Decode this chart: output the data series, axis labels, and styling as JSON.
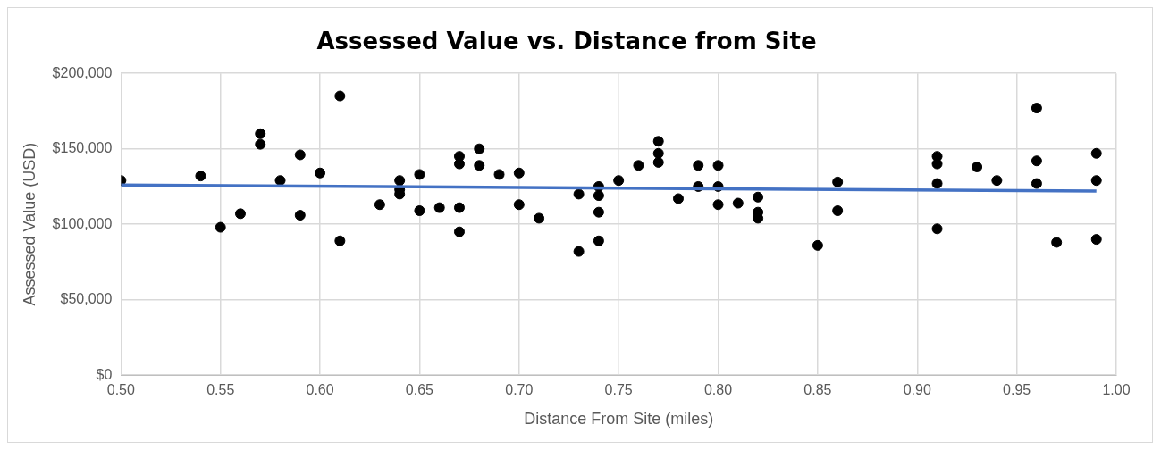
{
  "chart_data": {
    "type": "scatter",
    "title": "Assessed Value vs. Distance from Site",
    "xlabel": "Distance From Site (miles)",
    "ylabel": "Assessed Value (USD)",
    "series": [
      {
        "color": "#000000",
        "x": [
          0.5,
          0.54,
          0.55,
          0.56,
          0.57,
          0.57,
          0.58,
          0.59,
          0.59,
          0.6,
          0.61,
          0.61,
          0.63,
          0.64,
          0.64,
          0.64,
          0.65,
          0.65,
          0.66,
          0.67,
          0.67,
          0.67,
          0.67,
          0.68,
          0.68,
          0.69,
          0.7,
          0.7,
          0.71,
          0.73,
          0.73,
          0.74,
          0.74,
          0.74,
          0.74,
          0.75,
          0.76,
          0.77,
          0.77,
          0.77,
          0.78,
          0.79,
          0.79,
          0.8,
          0.8,
          0.8,
          0.81,
          0.82,
          0.82,
          0.82,
          0.85,
          0.86,
          0.86,
          0.91,
          0.91,
          0.91,
          0.91,
          0.93,
          0.94,
          0.96,
          0.96,
          0.96,
          0.97,
          0.99,
          0.99,
          0.99
        ],
        "values": [
          129000,
          132000,
          98000,
          107000,
          160000,
          153000,
          129000,
          146000,
          106000,
          134000,
          185000,
          89000,
          113000,
          129000,
          123000,
          120000,
          133000,
          109000,
          111000,
          145000,
          140000,
          111000,
          95000,
          150000,
          139000,
          133000,
          134000,
          113000,
          104000,
          120000,
          82000,
          125000,
          119000,
          108000,
          89000,
          129000,
          139000,
          155000,
          147000,
          141000,
          117000,
          139000,
          125000,
          139000,
          125000,
          113000,
          114000,
          118000,
          108000,
          104000,
          86000,
          128000,
          109000,
          145000,
          140000,
          127000,
          97000,
          138000,
          129000,
          177000,
          142000,
          127000,
          88000,
          147000,
          129000,
          90000
        ]
      },
      {
        "type": "line",
        "color": "#4472c4",
        "x": [
          0.5,
          0.99
        ],
        "values": [
          126000,
          122000
        ],
        "marker": "none"
      }
    ],
    "xlim": [
      0.5,
      1.0
    ],
    "xticks": [
      {
        "value": 0.5,
        "label": "0.50"
      },
      {
        "value": 0.55,
        "label": "0.55"
      },
      {
        "value": 0.6,
        "label": "0.60"
      },
      {
        "value": 0.65,
        "label": "0.65"
      },
      {
        "value": 0.7,
        "label": "0.70"
      },
      {
        "value": 0.75,
        "label": "0.75"
      },
      {
        "value": 0.8,
        "label": "0.80"
      },
      {
        "value": 0.85,
        "label": "0.85"
      },
      {
        "value": 0.9,
        "label": "0.90"
      },
      {
        "value": 0.95,
        "label": "0.95"
      },
      {
        "value": 1.0,
        "label": "1.00"
      }
    ],
    "ylim": [
      0,
      200000
    ],
    "yticks": [
      {
        "value": 0,
        "label": "$0"
      },
      {
        "value": 50000,
        "label": "$50,000"
      },
      {
        "value": 100000,
        "label": "$100,000"
      },
      {
        "value": 150000,
        "label": "$150,000"
      },
      {
        "value": 200000,
        "label": "$200,000"
      }
    ],
    "grid": true,
    "marker": "circle"
  }
}
